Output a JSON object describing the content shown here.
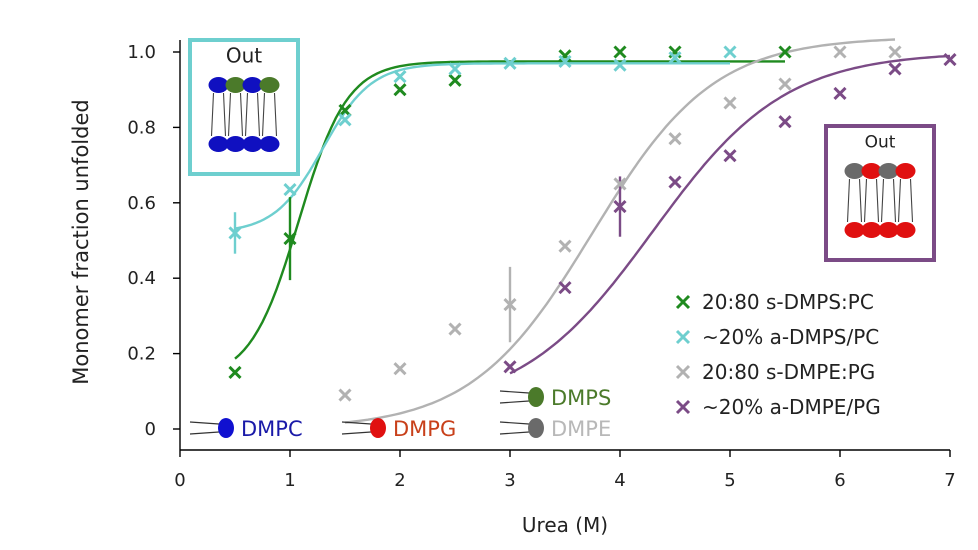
{
  "chart_data": {
    "type": "scatter",
    "title": "",
    "xlabel": "Urea (M)",
    "ylabel": "Monomer fraction unfolded",
    "xlim": [
      0,
      7
    ],
    "ylim": [
      -0.05,
      1.05
    ],
    "x_ticks": [
      "0",
      "1",
      "2",
      "3",
      "4",
      "5",
      "6",
      "7"
    ],
    "y_ticks": [
      "0",
      "0.2",
      "0.4",
      "0.6",
      "0.8",
      "1.0"
    ],
    "legend_position": "bottom-right",
    "series": [
      {
        "name": "20:80 s-DMPS:PC",
        "color": "#1f8a1f",
        "x": [
          0.5,
          1.0,
          1.5,
          2.0,
          2.5,
          3.5,
          4.0,
          4.5,
          5.5
        ],
        "y": [
          0.15,
          0.505,
          0.845,
          0.9,
          0.925,
          0.99,
          1.0,
          1.0,
          1.0
        ],
        "err": [
          0,
          0.11,
          0,
          0,
          0,
          0,
          0,
          0,
          0
        ],
        "fit": {
          "bottom": 0.13,
          "top": 0.975,
          "midpoint": 1.08,
          "slope": 0.22,
          "x_range": [
            0.5,
            5.5
          ]
        }
      },
      {
        "name": "~20% a-DMPS/PC",
        "color": "#6ecfcf",
        "x": [
          0.5,
          1.0,
          1.5,
          2.0,
          2.5,
          3.0,
          3.5,
          4.0,
          4.5,
          5.0
        ],
        "y": [
          0.52,
          0.635,
          0.82,
          0.935,
          0.955,
          0.97,
          0.975,
          0.965,
          0.985,
          1.0
        ],
        "err": [
          0.055,
          0,
          0,
          0,
          0,
          0,
          0,
          0,
          0,
          0
        ],
        "fit": {
          "bottom": 0.52,
          "top": 0.97,
          "midpoint": 1.3,
          "slope": 0.22,
          "x_range": [
            0.5,
            5.0
          ]
        }
      },
      {
        "name": "20:80 s-DMPE:PG",
        "color": "#b2b2b2",
        "x": [
          1.5,
          2.0,
          2.5,
          3.0,
          3.5,
          4.0,
          4.5,
          5.0,
          5.5,
          6.0,
          6.5
        ],
        "y": [
          0.09,
          0.16,
          0.265,
          0.33,
          0.485,
          0.65,
          0.77,
          0.865,
          0.915,
          1.0,
          1.0
        ],
        "err": [
          0,
          0,
          0,
          0.1,
          0,
          0,
          0,
          0,
          0,
          0,
          0
        ],
        "fit": {
          "bottom": 0.0,
          "top": 1.04,
          "midpoint": 3.75,
          "slope": 0.55,
          "x_range": [
            1.5,
            6.5
          ]
        }
      },
      {
        "name": "~20% a-DMPE/PG",
        "color": "#7b4b86",
        "x": [
          3.0,
          3.5,
          4.0,
          4.5,
          5.0,
          5.5,
          6.0,
          6.5,
          7.0
        ],
        "y": [
          0.165,
          0.375,
          0.59,
          0.655,
          0.725,
          0.815,
          0.89,
          0.955,
          0.98
        ],
        "err": [
          0,
          0,
          0.08,
          0,
          0,
          0,
          0,
          0,
          0
        ],
        "fit": {
          "bottom": 0.05,
          "top": 1.0,
          "midpoint": 4.3,
          "slope": 0.6,
          "x_range": [
            3.0,
            7.0
          ]
        }
      }
    ],
    "insets": [
      {
        "label": "Out",
        "frame_color": "#6ecfcf",
        "top_heads": [
          "#1010c0",
          "#4b7a2a",
          "#1010c0",
          "#4b7a2a"
        ],
        "bottom_heads": [
          "#1010c0",
          "#1010c0",
          "#1010c0",
          "#1010c0"
        ]
      },
      {
        "label": "Out",
        "frame_color": "#7b4b86",
        "top_heads": [
          "#6a6a6a",
          "#e01010",
          "#6a6a6a",
          "#e01010"
        ],
        "bottom_heads": [
          "#e01010",
          "#e01010",
          "#e01010",
          "#e01010"
        ]
      }
    ],
    "lipid_key": [
      {
        "label": "DMPC",
        "color": "#1a1aa8",
        "head_color": "#1010d0"
      },
      {
        "label": "DMPG",
        "color": "#c8401a",
        "head_color": "#e01010"
      },
      {
        "label": "DMPS",
        "color": "#4b7a2a",
        "head_color": "#4b7a2a"
      },
      {
        "label": "DMPE",
        "color": "#b8b8b8",
        "head_color": "#6a6a6a"
      }
    ]
  }
}
